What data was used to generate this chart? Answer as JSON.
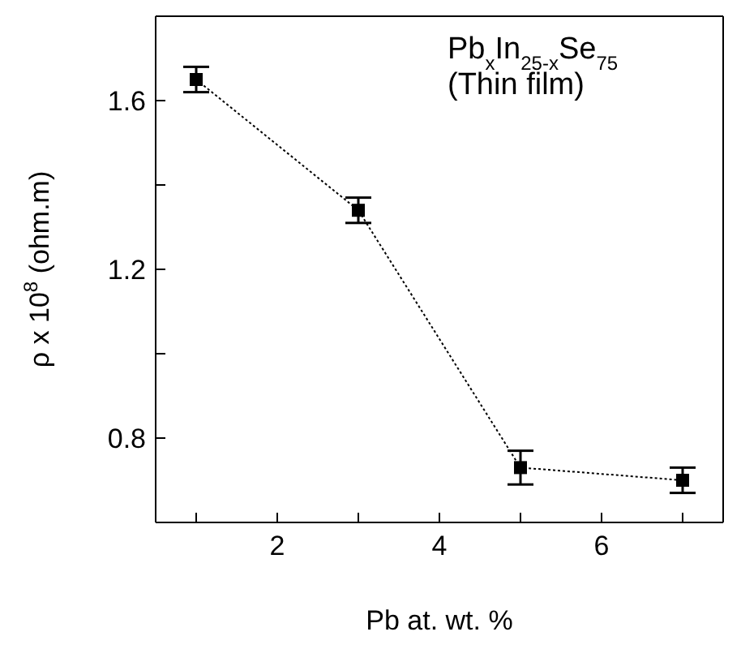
{
  "chart_data": {
    "type": "line",
    "xlabel": "Pb at. wt. %",
    "ylabel": "ρ x 10$^{8}$ (ohm.m)",
    "annotations": [
      "Pb$_{x}$In$_{25-x}$Se$_{75}$",
      "(Thin film)"
    ],
    "x": [
      1,
      3,
      5,
      7
    ],
    "series": [
      {
        "color": "#000000",
        "values": [
          1.65,
          1.34,
          0.73,
          0.7
        ],
        "errors": [
          0.03,
          0.03,
          0.04,
          0.03
        ]
      }
    ],
    "xlim": [
      0.5,
      7.5
    ],
    "xticks": [
      {
        "value": 1,
        "label": null
      },
      2,
      {
        "value": 3,
        "label": null
      },
      4,
      {
        "value": 5,
        "label": null
      },
      6,
      {
        "value": 7,
        "label": null
      }
    ],
    "ylim": [
      0.6,
      1.8
    ],
    "yticks": [
      0.8,
      {
        "value": 1.0,
        "label": null
      },
      1.2,
      {
        "value": 1.4,
        "label": null
      },
      1.6
    ],
    "marker": "square",
    "line_style": "dotted",
    "grid": false,
    "legend": false
  }
}
